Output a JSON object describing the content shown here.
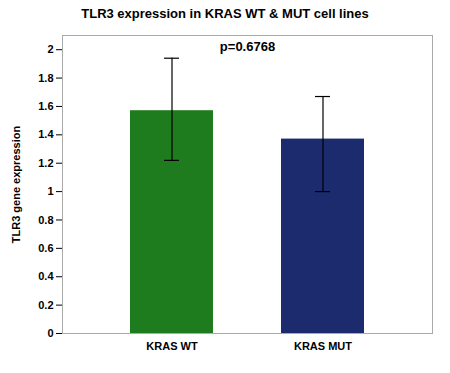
{
  "chart_data": {
    "type": "bar",
    "title": "TLR3 expression in KRAS  WT & MUT cell lines",
    "ylabel": "TLR3 gene expression",
    "categories": [
      "KRAS WT",
      "KRAS MUT"
    ],
    "values": [
      1.57,
      1.37
    ],
    "errors_upper": [
      0.37,
      0.3
    ],
    "errors_lower": [
      0.35,
      0.37
    ],
    "colors": [
      "#1E7C1E",
      "#1C2B6E"
    ],
    "ylim": [
      0,
      2.1
    ],
    "yticks": [
      0,
      0.2,
      0.4,
      0.6,
      0.8,
      1,
      1.2,
      1.4,
      1.6,
      1.8,
      2
    ],
    "annotation": "p=0.6768",
    "grid": false
  }
}
